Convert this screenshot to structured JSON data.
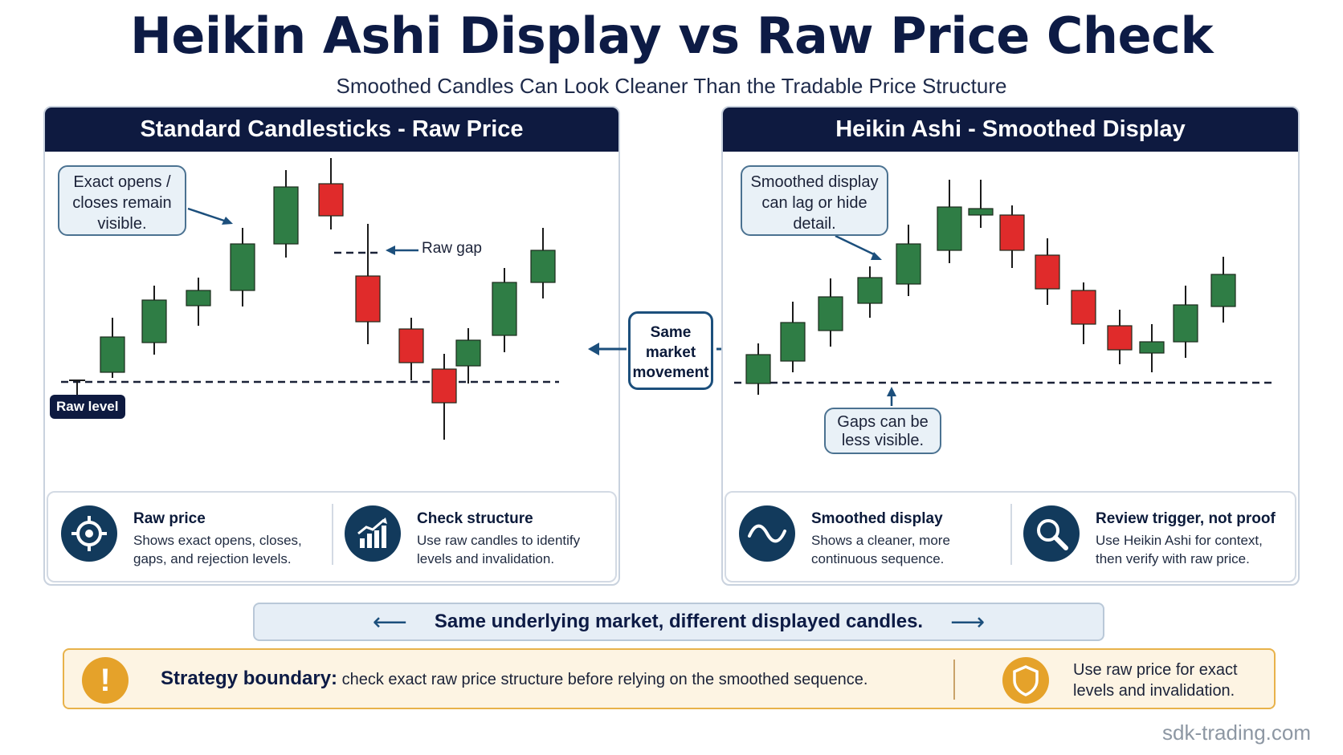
{
  "title": "Heikin Ashi Display vs Raw Price Check",
  "subtitle": "Smoothed Candles Can Look Cleaner Than the Tradable Price Structure",
  "colors": {
    "navy": "#0e1a40",
    "bullish": "#2f7d45",
    "bearish": "#e02b2b",
    "accent_blue": "#1c4f7c",
    "warning": "#e5a22a"
  },
  "left_panel": {
    "header": "Standard Candlesticks - Raw Price",
    "callout": "Exact opens / closes remain visible.",
    "gap_label": "Raw gap",
    "level_badge": "Raw level",
    "info": [
      {
        "icon": "target-icon",
        "title": "Raw price",
        "desc": "Shows exact opens, closes, gaps, and rejection levels."
      },
      {
        "icon": "bar-chart-trend-icon",
        "title": "Check structure",
        "desc": "Use raw candles to identify levels and invalidation."
      }
    ]
  },
  "right_panel": {
    "header": "Heikin Ashi - Smoothed Display",
    "callout": "Smoothed display can lag or hide detail.",
    "gap_callout": "Gaps can be less visible.",
    "info": [
      {
        "icon": "wave-icon",
        "title": "Smoothed display",
        "desc": "Shows a cleaner, more continuous sequence."
      },
      {
        "icon": "magnifier-icon",
        "title": "Review trigger, not proof",
        "desc": "Use Heikin Ashi for context, then verify with raw price."
      }
    ]
  },
  "middle_label": "Same market movement",
  "banner": "Same underlying market, different displayed candles.",
  "strategy": {
    "label": "Strategy boundary:",
    "text": "check exact raw price structure before relying on the smoothed sequence.",
    "right_text": "Use raw price for exact levels and invalidation."
  },
  "footer": "sdk-trading.com"
}
